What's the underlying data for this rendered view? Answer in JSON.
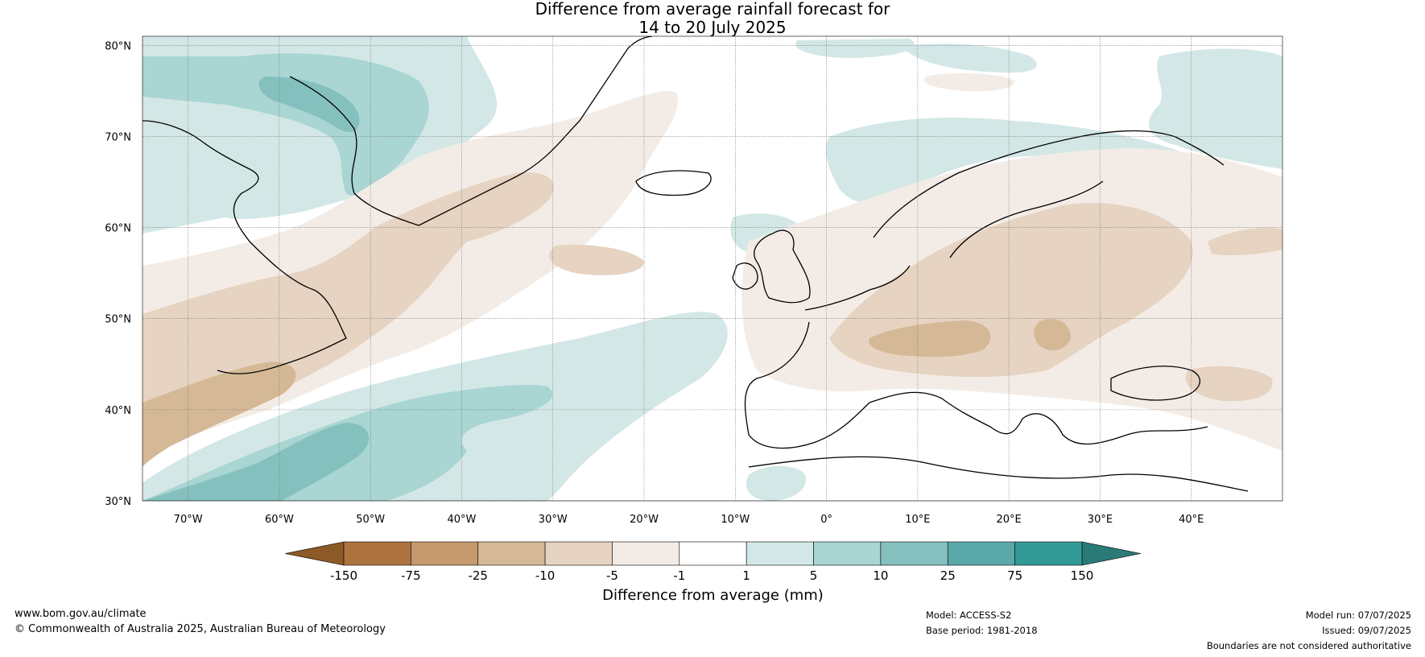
{
  "title": {
    "line1": "Difference from average rainfall forecast for",
    "line2": "14 to 20 July 2025"
  },
  "map": {
    "projection": "equirectangular",
    "extent": {
      "lon": [
        -75,
        50
      ],
      "lat": [
        30,
        81
      ]
    },
    "lat_ticks": [
      {
        "value": 30,
        "label": "30°N"
      },
      {
        "value": 40,
        "label": "40°N"
      },
      {
        "value": 50,
        "label": "50°N"
      },
      {
        "value": 60,
        "label": "60°N"
      },
      {
        "value": 70,
        "label": "70°N"
      },
      {
        "value": 80,
        "label": "80°N"
      }
    ],
    "lon_ticks": [
      {
        "value": -70,
        "label": "70°W"
      },
      {
        "value": -60,
        "label": "60°W"
      },
      {
        "value": -50,
        "label": "50°W"
      },
      {
        "value": -40,
        "label": "40°W"
      },
      {
        "value": -30,
        "label": "30°W"
      },
      {
        "value": -20,
        "label": "20°W"
      },
      {
        "value": -10,
        "label": "10°W"
      },
      {
        "value": 0,
        "label": "0°"
      },
      {
        "value": 10,
        "label": "10°E"
      },
      {
        "value": 20,
        "label": "20°E"
      },
      {
        "value": 30,
        "label": "30°E"
      },
      {
        "value": 40,
        "label": "40°E"
      }
    ],
    "gridlines": true
  },
  "colorbar": {
    "title": "Difference from average (mm)",
    "boundaries": [
      "-150",
      "-75",
      "-25",
      "-10",
      "-5",
      "-1",
      "1",
      "5",
      "10",
      "25",
      "75",
      "150"
    ],
    "extend": "both",
    "colors": {
      "under": "#8c5a26",
      "bins": [
        "#ad733f",
        "#c49a6e",
        "#d5b896",
        "#e6d3c1",
        "#f3ece6",
        "#ffffff",
        "#d3e8e6",
        "#a9d5d2",
        "#84c0be",
        "#5aa9a8",
        "#339996"
      ],
      "over": "#2a7a78"
    }
  },
  "footer": {
    "left_line1": "www.bom.gov.au/climate",
    "left_line2": "© Commonwealth of Australia 2025, Australian Bureau of Meteorology",
    "model": "Model: ACCESS-S2",
    "base_period": "Base period: 1981-2018",
    "model_run": "Model run: 07/07/2025",
    "issued": "Issued: 09/07/2025",
    "disclaimer": "Boundaries are not considered authoritative"
  }
}
